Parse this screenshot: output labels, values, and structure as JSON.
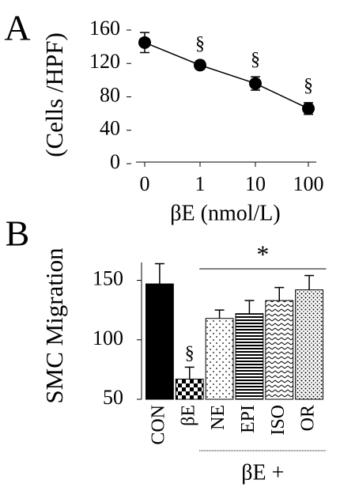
{
  "chart_data": [
    {
      "type": "line",
      "panel": "A",
      "ylabel": "(Cells /HPF)",
      "xlabel": "βE (nmol/L)",
      "categories": [
        "0",
        "1",
        "10",
        "100"
      ],
      "values": [
        145,
        118,
        96,
        66
      ],
      "errors": [
        12,
        5,
        8,
        7
      ],
      "color": "#000000",
      "ylim": [
        0,
        160
      ],
      "yticks": [
        0,
        40,
        80,
        120,
        160
      ],
      "annotations": [
        {
          "text": "§",
          "category": 1
        },
        {
          "text": "§",
          "category": 2
        },
        {
          "text": "§",
          "category": 3
        }
      ]
    },
    {
      "type": "bar",
      "panel": "B",
      "ylabel": "SMC Migration",
      "categories": [
        "CON",
        "βE",
        "NE",
        "EPI",
        "ISO",
        "OR"
      ],
      "values": [
        147,
        67,
        118,
        122,
        133,
        142
      ],
      "errors": [
        17,
        10,
        7,
        11,
        11,
        12
      ],
      "patterns": [
        "solid",
        "checker",
        "dots",
        "stripes",
        "zigzag",
        "speckle"
      ],
      "ylim": [
        50,
        165
      ],
      "yticks": [
        50,
        100,
        150
      ],
      "annotations": [
        {
          "text": "§",
          "category": 1
        }
      ],
      "group": {
        "above": "*",
        "below": "βE +",
        "from": 2,
        "to": 5
      }
    }
  ]
}
